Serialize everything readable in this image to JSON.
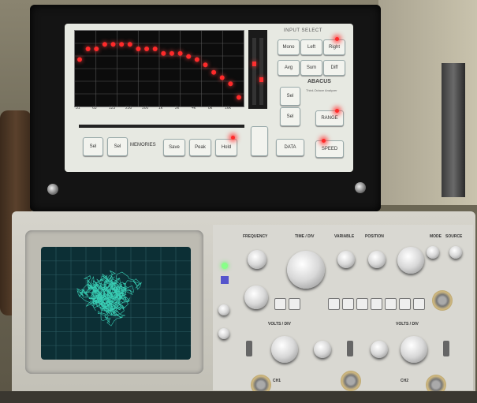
{
  "analyzer": {
    "input_select": "INPUT SELECT",
    "btn_mono": "Mono",
    "btn_left": "Left",
    "btn_right": "Right",
    "btn_avg": "Avg",
    "btn_sum": "Sum",
    "btn_diff": "Diff",
    "btn_select_up": "Sel",
    "btn_select_down": "Sel",
    "btn_range": "RANGE",
    "btn_data": "DATA",
    "btn_speed": "SPEED",
    "brand": "ABACUS",
    "subtitle": "Third-Octave Analyzer",
    "btn_prev": "Sel",
    "btn_next": "Sel",
    "memories": "MEMORIES",
    "btn_save": "Save",
    "btn_peak": "Peak",
    "btn_hold": "Hold",
    "freq_ticks": [
      "31",
      "63",
      "125",
      "250",
      "500",
      "1k",
      "2k",
      "4k",
      "8k",
      "16k"
    ],
    "spectrum_levels": [
      0.62,
      0.76,
      0.76,
      0.82,
      0.82,
      0.82,
      0.82,
      0.76,
      0.76,
      0.76,
      0.7,
      0.7,
      0.7,
      0.66,
      0.62,
      0.55,
      0.45,
      0.38,
      0.3,
      0.12
    ]
  },
  "oscilloscope": {
    "label_frequency": "FREQUENCY",
    "label_time_div": "TIME / DIV",
    "label_variable": "VARIABLE",
    "label_position": "POSITION",
    "label_mode": "MODE",
    "label_source": "SOURCE",
    "label_volts_div": "VOLTS / DIV",
    "label_ch1": "CH1",
    "label_ch2": "CH2"
  },
  "colors": {
    "led": "#ff2a2a",
    "trace": "#3fe6c8",
    "crt": "#0c2f35"
  }
}
